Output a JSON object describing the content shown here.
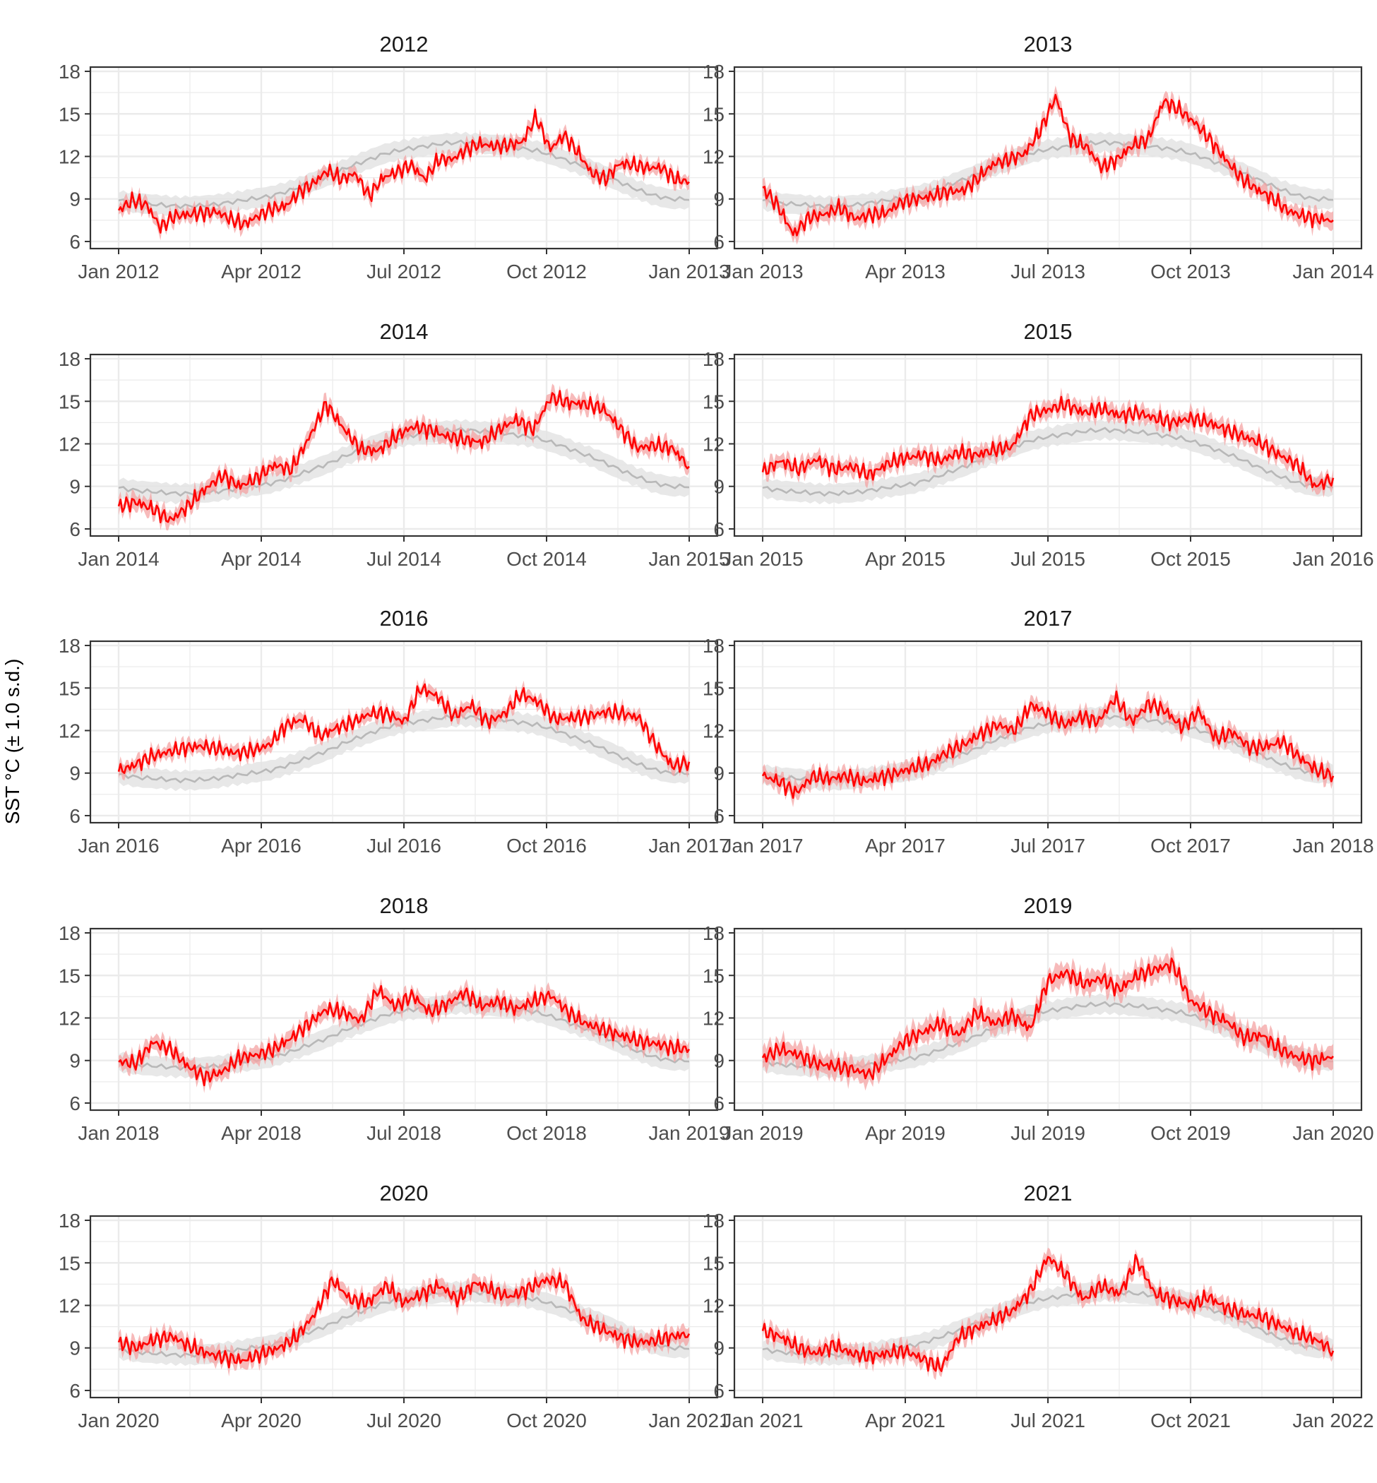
{
  "figure": {
    "ylabel": "SST °C (± 1.0 s.d.)",
    "y_ticks": [
      6,
      9,
      12,
      15,
      18
    ],
    "colors": {
      "observed_line": "#ff0000",
      "observed_band": "#f4a3a3",
      "climatology_line": "#b8b8b8",
      "climatology_band": "#e4e4e4",
      "panel_border": "#333333",
      "grid": "#ebebeb"
    }
  },
  "chart_data": [
    {
      "type": "line",
      "title": "2012",
      "ylim": [
        5.5,
        18.3
      ],
      "x_ticks": [
        "Jan 2012",
        "Apr 2012",
        "Jul 2012",
        "Oct 2012",
        "Jan 2013"
      ],
      "series": [
        {
          "values": [
            8.2,
            8.9,
            8.6,
            7.0,
            7.8,
            7.9,
            8.0,
            8.1,
            7.6,
            7.2,
            7.8,
            8.3,
            8.5,
            9.5,
            10.1,
            11.0,
            10.4,
            10.8,
            9.2,
            10.5,
            10.9,
            11.4,
            10.4,
            11.8,
            11.8,
            12.5,
            12.9,
            12.7,
            12.8,
            13.0,
            14.8,
            12.5,
            13.5,
            12.3,
            10.8,
            10.4,
            11.5,
            11.4,
            11.2,
            11.2,
            10.4,
            10.2
          ]
        }
      ],
      "sd": 0.5
    },
    {
      "type": "line",
      "title": "2013",
      "ylim": [
        5.5,
        18.3
      ],
      "x_ticks": [
        "Jan 2013",
        "Apr 2013",
        "Jul 2013",
        "Oct 2013",
        "Jan 2014"
      ],
      "series": [
        {
          "values": [
            9.8,
            8.5,
            6.5,
            7.7,
            7.9,
            8.4,
            7.6,
            7.9,
            8.0,
            8.8,
            9.0,
            9.2,
            9.5,
            9.6,
            10.5,
            11.5,
            11.8,
            12.2,
            13.8,
            16.2,
            13.2,
            12.7,
            11.2,
            11.8,
            12.8,
            13.2,
            15.9,
            15.3,
            14.4,
            13.2,
            11.8,
            10.5,
            9.7,
            9.1,
            8.2,
            7.8,
            7.6,
            7.5
          ]
        }
      ],
      "sd": 0.6
    },
    {
      "type": "line",
      "title": "2014",
      "ylim": [
        5.5,
        18.3
      ],
      "x_ticks": [
        "Jan 2014",
        "Apr 2014",
        "Jul 2014",
        "Oct 2014",
        "Jan 2015"
      ],
      "series": [
        {
          "values": [
            7.6,
            7.9,
            7.4,
            6.6,
            7.6,
            8.8,
            9.8,
            9.0,
            9.6,
            10.5,
            10.2,
            12.4,
            14.8,
            13.1,
            11.6,
            11.5,
            12.5,
            13.2,
            13.0,
            12.5,
            12.3,
            12.1,
            13.0,
            13.7,
            13.0,
            15.3,
            14.9,
            14.8,
            14.5,
            13.1,
            11.7,
            11.9,
            11.7,
            10.4
          ]
        }
      ],
      "sd": 0.6
    },
    {
      "type": "line",
      "title": "2015",
      "ylim": [
        5.5,
        18.3
      ],
      "x_ticks": [
        "Jan 2015",
        "Apr 2015",
        "Jul 2015",
        "Oct 2015",
        "Jan 2016"
      ],
      "series": [
        {
          "values": [
            10.0,
            10.8,
            10.2,
            10.9,
            10.2,
            10.4,
            9.8,
            10.6,
            11.0,
            11.2,
            10.8,
            11.4,
            11.2,
            11.6,
            11.8,
            14.0,
            14.4,
            14.8,
            14.2,
            14.5,
            14.0,
            14.2,
            13.8,
            13.5,
            13.8,
            13.5,
            13.0,
            12.5,
            12.0,
            11.2,
            10.5,
            9.0,
            9.6
          ]
        }
      ],
      "sd": 0.6
    },
    {
      "type": "line",
      "title": "2016",
      "ylim": [
        5.5,
        18.3
      ],
      "x_ticks": [
        "Jan 2016",
        "Apr 2016",
        "Jul 2016",
        "Oct 2016",
        "Jan 2017"
      ],
      "series": [
        {
          "values": [
            9.1,
            9.6,
            10.2,
            10.5,
            10.8,
            10.9,
            10.7,
            10.4,
            10.6,
            11.0,
            12.4,
            12.8,
            11.6,
            12.2,
            12.6,
            13.2,
            13.2,
            12.6,
            15.0,
            14.4,
            13.0,
            13.8,
            12.6,
            13.2,
            14.6,
            14.0,
            12.8,
            12.9,
            13.0,
            13.3,
            13.2,
            12.9,
            11.0,
            9.5,
            9.8
          ]
        }
      ],
      "sd": 0.5
    },
    {
      "type": "line",
      "title": "2017",
      "ylim": [
        5.5,
        18.3
      ],
      "x_ticks": [
        "Jan 2017",
        "Apr 2017",
        "Jul 2017",
        "Oct 2017",
        "Jan 2018"
      ],
      "series": [
        {
          "values": [
            8.8,
            8.4,
            7.6,
            8.8,
            8.6,
            8.8,
            8.4,
            8.7,
            9.0,
            9.4,
            9.7,
            10.5,
            11.0,
            11.8,
            12.4,
            12.0,
            13.8,
            13.2,
            12.4,
            13.0,
            12.6,
            14.3,
            12.6,
            13.9,
            13.4,
            12.2,
            13.4,
            11.4,
            11.9,
            10.8,
            10.9,
            11.2,
            10.1,
            9.2,
            8.8
          ]
        }
      ],
      "sd": 0.6
    },
    {
      "type": "line",
      "title": "2018",
      "ylim": [
        5.5,
        18.3
      ],
      "x_ticks": [
        "Jan 2018",
        "Apr 2018",
        "Jul 2018",
        "Oct 2018",
        "Jan 2019"
      ],
      "series": [
        {
          "values": [
            8.9,
            8.8,
            10.3,
            9.8,
            8.6,
            7.8,
            8.2,
            9.2,
            9.4,
            9.8,
            10.6,
            11.6,
            12.6,
            12.4,
            11.8,
            14.0,
            12.8,
            13.6,
            12.4,
            13.0,
            13.8,
            12.8,
            13.2,
            12.6,
            13.2,
            13.6,
            12.4,
            11.6,
            11.2,
            10.8,
            10.4,
            10.2,
            9.9,
            9.8
          ]
        }
      ],
      "sd": 0.6
    },
    {
      "type": "line",
      "title": "2019",
      "ylim": [
        5.5,
        18.3
      ],
      "x_ticks": [
        "Jan 2019",
        "Apr 2019",
        "Jul 2019",
        "Oct 2019",
        "Jan 2020"
      ],
      "series": [
        {
          "values": [
            9.2,
            9.8,
            9.4,
            8.8,
            8.6,
            8.4,
            8.0,
            9.2,
            10.4,
            11.0,
            11.6,
            10.8,
            12.4,
            11.6,
            12.2,
            11.2,
            14.6,
            15.2,
            14.4,
            14.8,
            14.0,
            15.0,
            15.4,
            15.8,
            13.2,
            12.4,
            11.8,
            10.6,
            10.8,
            9.8,
            9.2,
            9.0,
            9.3
          ]
        }
      ],
      "sd": 0.8
    },
    {
      "type": "line",
      "title": "2020",
      "ylim": [
        5.5,
        18.3
      ],
      "x_ticks": [
        "Jan 2020",
        "Apr 2020",
        "Jul 2020",
        "Oct 2020",
        "Jan 2021"
      ],
      "series": [
        {
          "values": [
            9.4,
            9.0,
            9.6,
            9.8,
            9.1,
            8.6,
            8.3,
            8.1,
            8.6,
            9.0,
            9.8,
            11.4,
            13.8,
            12.4,
            12.2,
            13.4,
            12.2,
            12.8,
            13.4,
            12.4,
            13.6,
            13.0,
            12.6,
            13.2,
            13.8,
            13.6,
            11.0,
            10.4,
            9.8,
            9.4,
            9.5,
            9.8,
            10.0
          ]
        }
      ],
      "sd": 0.6
    },
    {
      "type": "line",
      "title": "2021",
      "ylim": [
        5.5,
        18.3
      ],
      "x_ticks": [
        "Jan 2021",
        "Apr 2021",
        "Jul 2021",
        "Oct 2021",
        "Jan 2022"
      ],
      "series": [
        {
          "values": [
            10.2,
            9.8,
            9.0,
            8.6,
            9.2,
            8.6,
            8.4,
            8.6,
            8.8,
            8.2,
            7.6,
            9.8,
            10.4,
            11.0,
            11.6,
            13.0,
            15.4,
            14.2,
            12.4,
            13.4,
            12.8,
            15.2,
            12.8,
            12.4,
            12.0,
            12.6,
            11.8,
            11.4,
            11.2,
            10.6,
            10.0,
            9.6,
            8.8
          ]
        }
      ],
      "sd": 0.6
    }
  ],
  "climatology": {
    "values": [
      8.9,
      8.7,
      8.6,
      8.5,
      8.5,
      8.6,
      8.8,
      9.0,
      9.2,
      9.6,
      10.1,
      10.6,
      11.2,
      11.7,
      12.2,
      12.5,
      12.7,
      12.9,
      13.0,
      12.9,
      12.8,
      12.6,
      12.4,
      12.0,
      11.5,
      11.0,
      10.4,
      9.8,
      9.3,
      9.0,
      9.0
    ],
    "sd": 0.7
  }
}
